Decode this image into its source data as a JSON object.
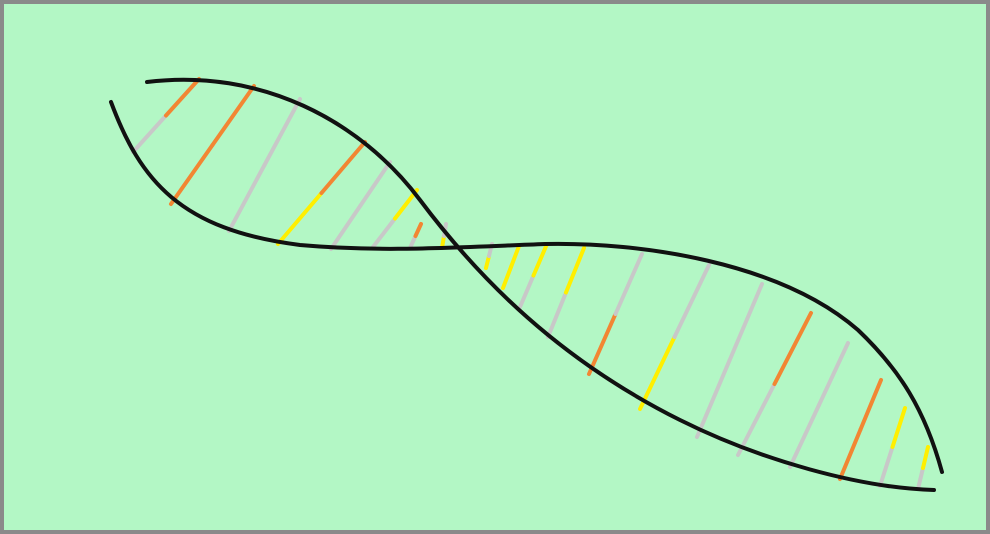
{
  "colors": {
    "background": "#b3f7c5",
    "border": "#8a8a8a",
    "backbone": "#111111",
    "orange": "#f28633",
    "gray": "#c8c8c8",
    "yellow": "#ffef00"
  },
  "base_pairs": [
    [
      "gray",
      "orange"
    ],
    [
      "orange",
      "orange"
    ],
    [
      "gray",
      "gray"
    ],
    [
      "yellow",
      "orange"
    ],
    [
      "gray",
      "gray"
    ],
    [
      "gray",
      "yellow"
    ],
    [
      "gray",
      "orange"
    ],
    [
      "yellow",
      "gray"
    ],
    [
      "yellow",
      "gray"
    ],
    [
      "yellow",
      "yellow"
    ],
    [
      "gray",
      "yellow"
    ],
    [
      "gray",
      "yellow"
    ],
    [
      "orange",
      "gray"
    ],
    [
      "yellow",
      "gray"
    ],
    [
      "gray",
      "gray"
    ],
    [
      "gray",
      "orange"
    ],
    [
      "gray",
      "gray"
    ],
    [
      "orange",
      "orange"
    ],
    [
      "gray",
      "yellow"
    ],
    [
      "gray",
      "yellow"
    ],
    [
      "orange",
      "gray"
    ],
    [
      "yellow",
      "gray"
    ]
  ]
}
